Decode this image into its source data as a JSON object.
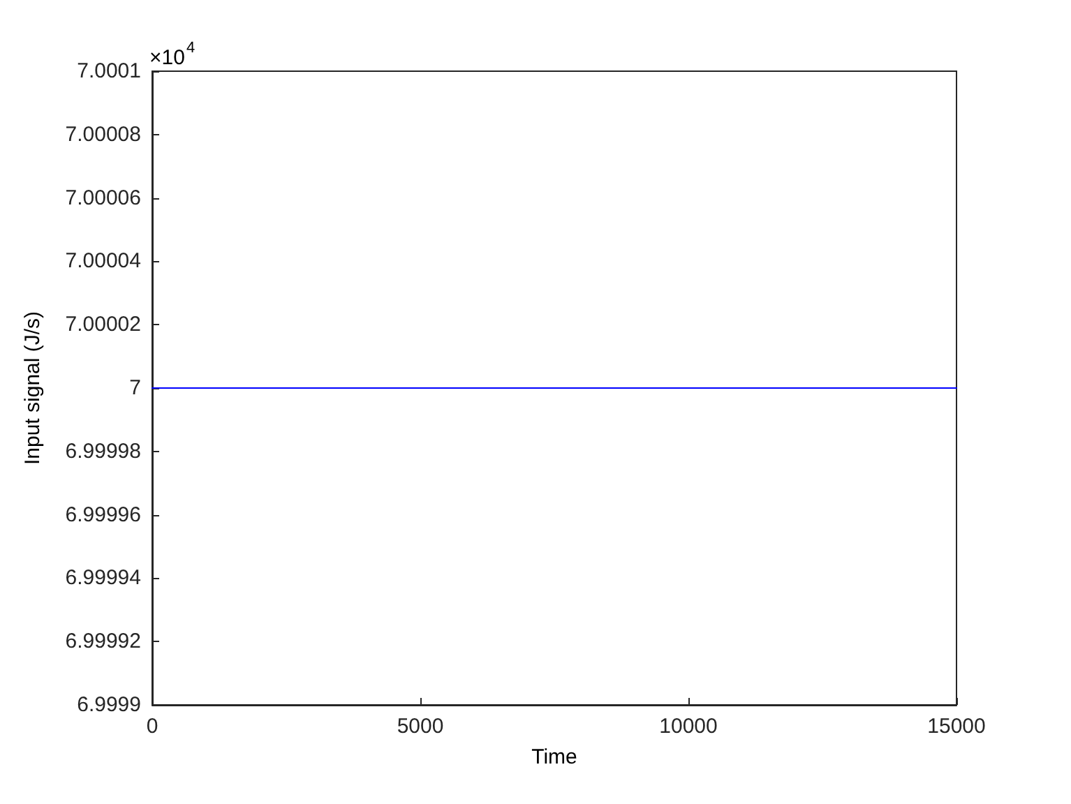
{
  "chart_data": {
    "type": "line",
    "xlabel": "Time",
    "ylabel": "Input signal (J/s)",
    "annotations": [
      "×10$^{4}$"
    ],
    "x": [
      0,
      15000
    ],
    "series": [
      {
        "color": "#0000ff",
        "values": [
          7,
          7
        ]
      }
    ],
    "xlim": [
      0,
      15000
    ],
    "xticks": [
      0,
      5000,
      10000,
      15000
    ],
    "ylim": [
      6.9999,
      7.0001
    ],
    "yticks": [
      6.9999,
      6.99992,
      6.99994,
      6.99996,
      6.99998,
      7,
      7.00002,
      7.00004,
      7.00006,
      7.00008,
      7.0001
    ],
    "grid": false,
    "marker": "none",
    "line_style": "solid"
  }
}
